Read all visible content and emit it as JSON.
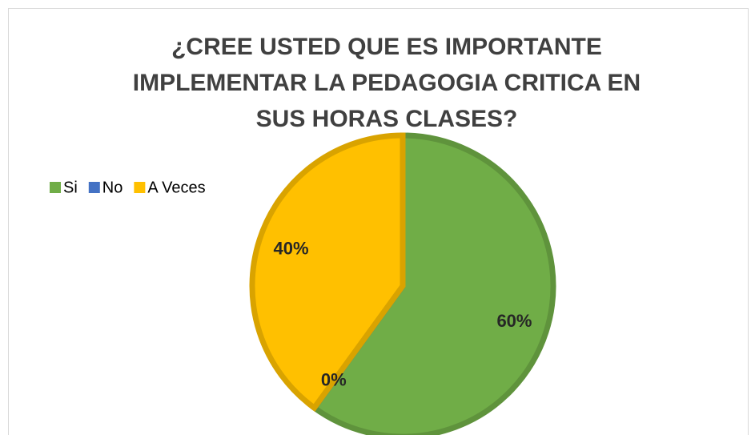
{
  "chart_data": {
    "type": "pie",
    "title": [
      "¿CREE USTED QUE ES IMPORTANTE",
      "IMPLEMENTAR LA PEDAGOGIA CRITICA EN",
      "SUS HORAS CLASES?"
    ],
    "categories": [
      "Si",
      "No",
      "A Veces"
    ],
    "values": [
      60,
      0,
      40
    ],
    "value_labels": [
      "60%",
      "0%",
      "40%"
    ],
    "colors": [
      "#70ad47",
      "#4472c4",
      "#ffc000"
    ],
    "legend": "left"
  }
}
